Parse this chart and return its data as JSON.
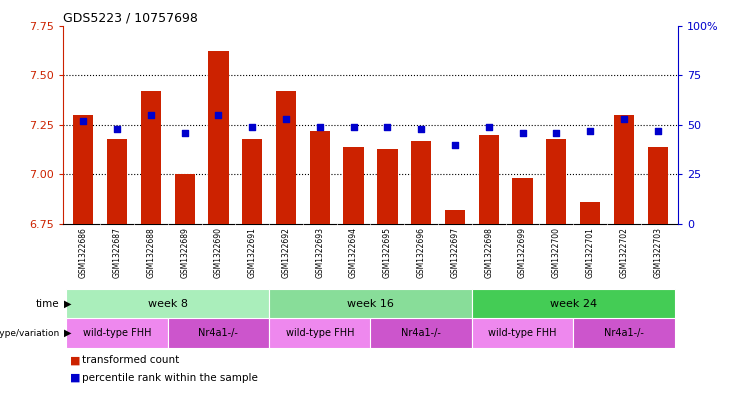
{
  "title": "GDS5223 / 10757698",
  "samples": [
    "GSM1322686",
    "GSM1322687",
    "GSM1322688",
    "GSM1322689",
    "GSM1322690",
    "GSM1322691",
    "GSM1322692",
    "GSM1322693",
    "GSM1322694",
    "GSM1322695",
    "GSM1322696",
    "GSM1322697",
    "GSM1322698",
    "GSM1322699",
    "GSM1322700",
    "GSM1322701",
    "GSM1322702",
    "GSM1322703"
  ],
  "transformed_count": [
    7.3,
    7.18,
    7.42,
    7.0,
    7.62,
    7.18,
    7.42,
    7.22,
    7.14,
    7.13,
    7.17,
    6.82,
    7.2,
    6.98,
    7.18,
    6.86,
    7.3,
    7.14
  ],
  "percentile_rank": [
    52,
    48,
    55,
    46,
    55,
    49,
    53,
    49,
    49,
    49,
    48,
    40,
    49,
    46,
    46,
    47,
    53,
    47
  ],
  "ylim_left": [
    6.75,
    7.75
  ],
  "ylim_right": [
    0,
    100
  ],
  "yticks_left": [
    6.75,
    7.0,
    7.25,
    7.5,
    7.75
  ],
  "yticks_right": [
    0,
    25,
    50,
    75,
    100
  ],
  "bar_color": "#cc2200",
  "dot_color": "#0000cc",
  "bg_color": "#ffffff",
  "sample_bg": "#d0d0d0",
  "time_row": {
    "label": "time",
    "groups": [
      {
        "name": "week 8",
        "start": 0,
        "end": 5,
        "color": "#aaeebb"
      },
      {
        "name": "week 16",
        "start": 6,
        "end": 11,
        "color": "#88dd99"
      },
      {
        "name": "week 24",
        "start": 12,
        "end": 17,
        "color": "#44cc55"
      }
    ]
  },
  "geno_row": {
    "label": "genotype/variation",
    "groups": [
      {
        "name": "wild-type FHH",
        "start": 0,
        "end": 2,
        "color": "#ee88ee"
      },
      {
        "name": "Nr4a1-/-",
        "start": 3,
        "end": 5,
        "color": "#cc55cc"
      },
      {
        "name": "wild-type FHH",
        "start": 6,
        "end": 8,
        "color": "#ee88ee"
      },
      {
        "name": "Nr4a1-/-",
        "start": 9,
        "end": 11,
        "color": "#cc55cc"
      },
      {
        "name": "wild-type FHH",
        "start": 12,
        "end": 14,
        "color": "#ee88ee"
      },
      {
        "name": "Nr4a1-/-",
        "start": 15,
        "end": 17,
        "color": "#cc55cc"
      }
    ]
  },
  "legend": [
    {
      "label": "transformed count",
      "color": "#cc2200"
    },
    {
      "label": "percentile rank within the sample",
      "color": "#0000cc"
    }
  ]
}
